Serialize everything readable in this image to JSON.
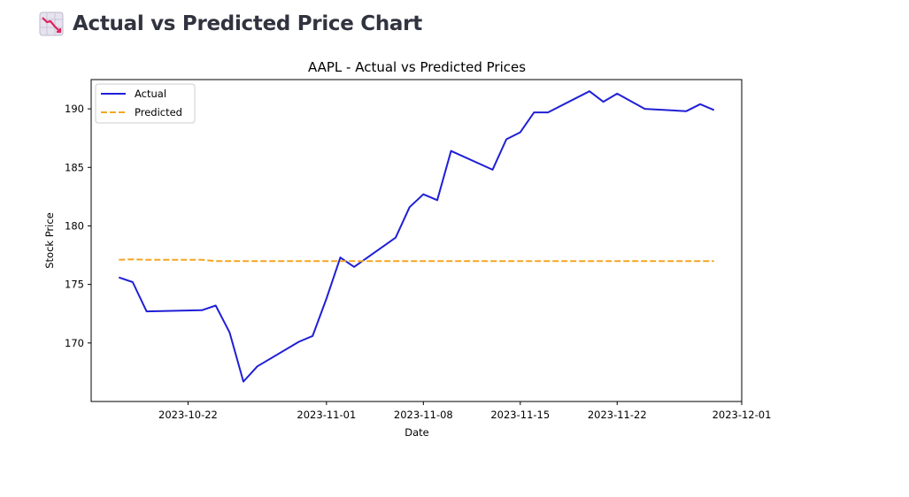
{
  "page": {
    "title": "Actual vs Predicted Price Chart",
    "icon": "chart-decreasing-icon"
  },
  "chart_data": {
    "type": "line",
    "title": "AAPL - Actual vs Predicted Prices",
    "xlabel": "Date",
    "ylabel": "Stock Price",
    "xlim": [
      "2023-10-15",
      "2023-12-01"
    ],
    "ylim": [
      165.0,
      192.5
    ],
    "x_ticks": [
      "2023-10-22",
      "2023-11-01",
      "2023-11-08",
      "2023-11-15",
      "2023-11-22",
      "2023-12-01"
    ],
    "y_ticks": [
      170,
      175,
      180,
      185,
      190
    ],
    "grid": false,
    "legend_position": "top-left",
    "series": [
      {
        "name": "Actual",
        "color": "#1f1fd6",
        "style": "solid",
        "points": [
          [
            "2023-10-17",
            175.6
          ],
          [
            "2023-10-18",
            175.2
          ],
          [
            "2023-10-19",
            172.7
          ],
          [
            "2023-10-23",
            172.8
          ],
          [
            "2023-10-24",
            173.2
          ],
          [
            "2023-10-25",
            170.9
          ],
          [
            "2023-10-26",
            166.7
          ],
          [
            "2023-10-27",
            168.0
          ],
          [
            "2023-10-30",
            170.1
          ],
          [
            "2023-10-31",
            170.6
          ],
          [
            "2023-11-01",
            173.8
          ],
          [
            "2023-11-02",
            177.3
          ],
          [
            "2023-11-03",
            176.5
          ],
          [
            "2023-11-06",
            179.0
          ],
          [
            "2023-11-07",
            181.6
          ],
          [
            "2023-11-08",
            182.7
          ],
          [
            "2023-11-09",
            182.2
          ],
          [
            "2023-11-10",
            186.4
          ],
          [
            "2023-11-13",
            184.8
          ],
          [
            "2023-11-14",
            187.4
          ],
          [
            "2023-11-15",
            188.0
          ],
          [
            "2023-11-16",
            189.7
          ],
          [
            "2023-11-17",
            189.7
          ],
          [
            "2023-11-20",
            191.5
          ],
          [
            "2023-11-21",
            190.6
          ],
          [
            "2023-11-22",
            191.3
          ],
          [
            "2023-11-24",
            190.0
          ],
          [
            "2023-11-27",
            189.8
          ],
          [
            "2023-11-28",
            190.4
          ],
          [
            "2023-11-29",
            189.9
          ]
        ]
      },
      {
        "name": "Predicted",
        "color": "#f5a623",
        "style": "dashed",
        "points": [
          [
            "2023-10-17",
            177.1
          ],
          [
            "2023-10-18",
            177.15
          ],
          [
            "2023-10-19",
            177.1
          ],
          [
            "2023-10-23",
            177.1
          ],
          [
            "2023-10-24",
            177.0
          ],
          [
            "2023-10-25",
            177.0
          ],
          [
            "2023-10-26",
            177.0
          ],
          [
            "2023-10-27",
            177.0
          ],
          [
            "2023-10-30",
            177.0
          ],
          [
            "2023-10-31",
            177.0
          ],
          [
            "2023-11-01",
            177.0
          ],
          [
            "2023-11-02",
            177.0
          ],
          [
            "2023-11-03",
            177.0
          ],
          [
            "2023-11-06",
            177.0
          ],
          [
            "2023-11-07",
            177.0
          ],
          [
            "2023-11-08",
            177.0
          ],
          [
            "2023-11-09",
            177.0
          ],
          [
            "2023-11-10",
            177.0
          ],
          [
            "2023-11-13",
            177.0
          ],
          [
            "2023-11-14",
            177.0
          ],
          [
            "2023-11-15",
            177.0
          ],
          [
            "2023-11-16",
            177.0
          ],
          [
            "2023-11-17",
            177.0
          ],
          [
            "2023-11-20",
            177.0
          ],
          [
            "2023-11-21",
            177.0
          ],
          [
            "2023-11-22",
            177.0
          ],
          [
            "2023-11-24",
            177.0
          ],
          [
            "2023-11-27",
            177.0
          ],
          [
            "2023-11-28",
            177.0
          ],
          [
            "2023-11-29",
            177.0
          ]
        ]
      }
    ]
  }
}
